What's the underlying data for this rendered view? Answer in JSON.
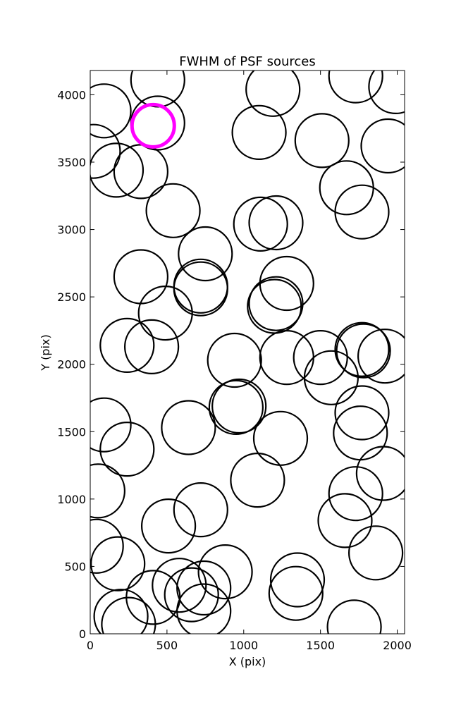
{
  "chart_data": {
    "type": "scatter",
    "title": "FWHM of PSF sources",
    "xlabel": "X (pix)",
    "ylabel": "Y (pix)",
    "xlim": [
      0,
      2048
    ],
    "ylim": [
      0,
      4180
    ],
    "xticks": [
      0,
      500,
      1000,
      1500,
      2000
    ],
    "yticks": [
      0,
      500,
      1000,
      1500,
      2000,
      2500,
      3000,
      3500,
      4000
    ],
    "grid": false,
    "marker": "open circle",
    "colors": {
      "normal": "#000000",
      "highlight": "#ff00ff"
    },
    "series": [
      {
        "points": [
          {
            "x": 90,
            "y": 3880
          },
          {
            "x": 440,
            "y": 4110
          },
          {
            "x": 440,
            "y": 3790
          },
          {
            "x": 20,
            "y": 3580
          },
          {
            "x": 170,
            "y": 3440
          },
          {
            "x": 330,
            "y": 3430
          },
          {
            "x": 540,
            "y": 3140
          },
          {
            "x": 1100,
            "y": 3720
          },
          {
            "x": 1190,
            "y": 4040
          },
          {
            "x": 1510,
            "y": 3660
          },
          {
            "x": 1730,
            "y": 4140
          },
          {
            "x": 1990,
            "y": 4060
          },
          {
            "x": 1940,
            "y": 3620
          },
          {
            "x": 1670,
            "y": 3310
          },
          {
            "x": 1770,
            "y": 3130
          },
          {
            "x": 1110,
            "y": 3040
          },
          {
            "x": 1210,
            "y": 3050
          },
          {
            "x": 750,
            "y": 2820
          },
          {
            "x": 330,
            "y": 2650
          },
          {
            "x": 720,
            "y": 2580
          },
          {
            "x": 720,
            "y": 2560
          },
          {
            "x": 490,
            "y": 2380
          },
          {
            "x": 1280,
            "y": 2600
          },
          {
            "x": 1210,
            "y": 2450
          },
          {
            "x": 1200,
            "y": 2430
          },
          {
            "x": 240,
            "y": 2140
          },
          {
            "x": 400,
            "y": 2130
          },
          {
            "x": 940,
            "y": 2030
          },
          {
            "x": 1280,
            "y": 2050
          },
          {
            "x": 1500,
            "y": 2050
          },
          {
            "x": 1570,
            "y": 1900
          },
          {
            "x": 1770,
            "y": 2110
          },
          {
            "x": 1780,
            "y": 2100
          },
          {
            "x": 1920,
            "y": 2060
          },
          {
            "x": 90,
            "y": 1550
          },
          {
            "x": 240,
            "y": 1370
          },
          {
            "x": 640,
            "y": 1530
          },
          {
            "x": 950,
            "y": 1680
          },
          {
            "x": 970,
            "y": 1690
          },
          {
            "x": 1770,
            "y": 1640
          },
          {
            "x": 1760,
            "y": 1490
          },
          {
            "x": 1240,
            "y": 1450
          },
          {
            "x": 50,
            "y": 1060
          },
          {
            "x": 1090,
            "y": 1140
          },
          {
            "x": 1910,
            "y": 1190
          },
          {
            "x": 1730,
            "y": 1040
          },
          {
            "x": 1660,
            "y": 840
          },
          {
            "x": 720,
            "y": 920
          },
          {
            "x": 510,
            "y": 800
          },
          {
            "x": 40,
            "y": 650
          },
          {
            "x": 180,
            "y": 520
          },
          {
            "x": 880,
            "y": 460
          },
          {
            "x": 580,
            "y": 360
          },
          {
            "x": 740,
            "y": 340
          },
          {
            "x": 660,
            "y": 290
          },
          {
            "x": 1350,
            "y": 400
          },
          {
            "x": 1340,
            "y": 300
          },
          {
            "x": 1860,
            "y": 600
          },
          {
            "x": 200,
            "y": 130
          },
          {
            "x": 410,
            "y": 270
          },
          {
            "x": 250,
            "y": 70
          },
          {
            "x": 740,
            "y": 170
          },
          {
            "x": 1720,
            "y": 50
          }
        ]
      },
      {
        "points": [
          {
            "x": 410,
            "y": 3770
          }
        ]
      }
    ]
  }
}
